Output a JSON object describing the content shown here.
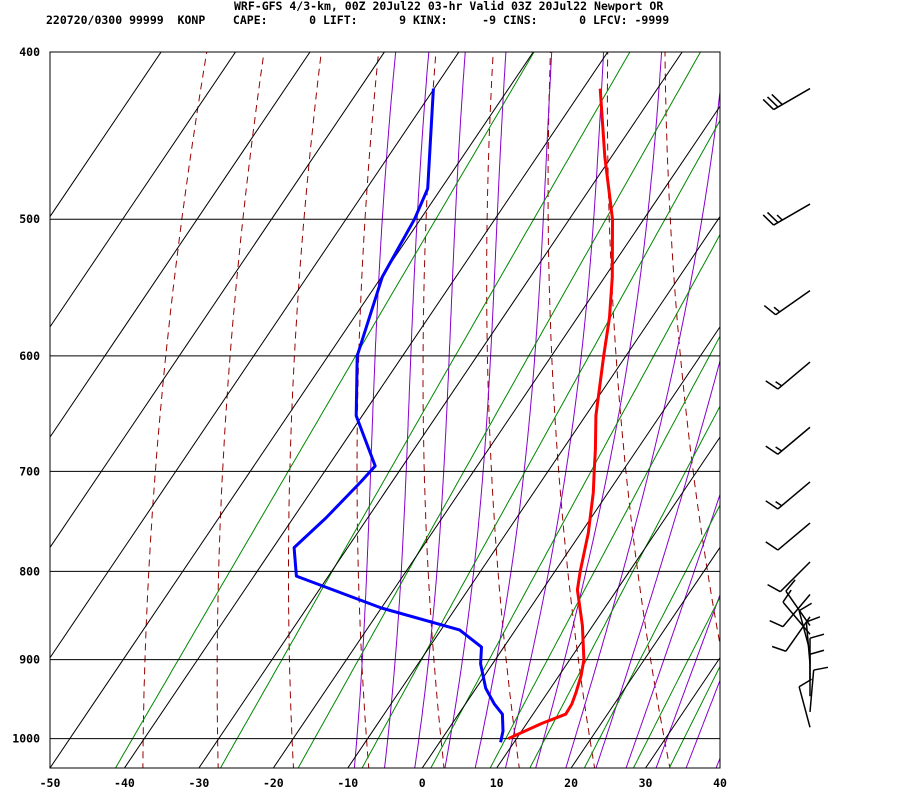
{
  "header": {
    "line1": "WRF-GFS 4/3-km, 00Z 20Jul22 03-hr Valid 03Z 20Jul22 Newport OR",
    "line2": "220720/0300 99999  KONP    CAPE:      0 LIFT:      9 KINX:     -9 CINS:      0 LFCV: -9999"
  },
  "colors": {
    "temperature": "#ff0000",
    "dewpoint": "#0000ff",
    "isotherm": "#000000",
    "isobar": "#000000",
    "dry_adiabat": "#990000",
    "moist_adiabat": "#8800cc",
    "mixing_ratio": "#008800",
    "wind_barb": "#000000"
  },
  "chart_data": {
    "type": "skew-t",
    "title": "WRF-GFS 4/3-km, 00Z 20Jul22 03-hr Valid 03Z 20Jul22 Newport OR",
    "xlabel": "",
    "ylabel": "",
    "x_range_bottom_degC": [
      -50,
      40
    ],
    "pressure_range_hPa": [
      1040,
      400
    ],
    "x_ticks": [
      "-50",
      "-40",
      "-30",
      "-20",
      "-10",
      "0",
      "10",
      "20",
      "30",
      "40"
    ],
    "x_tick_values": [
      -50,
      -40,
      -30,
      -20,
      -10,
      0,
      10,
      20,
      30,
      40
    ],
    "pressure_ticks": [
      "400",
      "500",
      "600",
      "700",
      "800",
      "900",
      "1000"
    ],
    "pressure_tick_values": [
      400,
      500,
      600,
      700,
      800,
      900,
      1000
    ],
    "grid": true,
    "series": [
      {
        "kind": "temperature",
        "pressure_hPa": [
          1000,
          980,
          968,
          955,
          940,
          920,
          900,
          860,
          820,
          800,
          760,
          720,
          700,
          680,
          650,
          600,
          570,
          540,
          500,
          460,
          420
        ],
        "values_degC": [
          8.9,
          12.0,
          14.4,
          14.3,
          13.8,
          13.0,
          11.9,
          8.6,
          4.7,
          3.4,
          1.0,
          -2.0,
          -3.8,
          -5.6,
          -8.6,
          -13.0,
          -15.7,
          -19.0,
          -24.2,
          -30.9,
          -37.7
        ]
      },
      {
        "kind": "dewpoint",
        "pressure_hPa": [
          1005,
          990,
          968,
          955,
          935,
          905,
          885,
          865,
          840,
          805,
          775,
          745,
          710,
          695,
          650,
          600,
          540,
          500,
          480,
          420
        ],
        "values_degC": [
          8.2,
          7.5,
          5.9,
          3.9,
          1.3,
          -1.6,
          -3.0,
          -7.5,
          -20.0,
          -34.3,
          -37.2,
          -35.6,
          -34.2,
          -33.7,
          -40.8,
          -46.1,
          -49.9,
          -50.8,
          -51.8,
          -60.1
        ]
      }
    ],
    "wind_barbs": [
      {
        "pressure_hPa": 420,
        "speed_kt": 30,
        "direction_deg": 240
      },
      {
        "pressure_hPa": 490,
        "speed_kt": 25,
        "direction_deg": 240
      },
      {
        "pressure_hPa": 550,
        "speed_kt": 15,
        "direction_deg": 235
      },
      {
        "pressure_hPa": 605,
        "speed_kt": 15,
        "direction_deg": 230
      },
      {
        "pressure_hPa": 660,
        "speed_kt": 15,
        "direction_deg": 230
      },
      {
        "pressure_hPa": 710,
        "speed_kt": 15,
        "direction_deg": 230
      },
      {
        "pressure_hPa": 750,
        "speed_kt": 10,
        "direction_deg": 230
      },
      {
        "pressure_hPa": 790,
        "speed_kt": 10,
        "direction_deg": 225
      },
      {
        "pressure_hPa": 825,
        "speed_kt": 10,
        "direction_deg": 220
      },
      {
        "pressure_hPa": 850,
        "speed_kt": 10,
        "direction_deg": 215
      },
      {
        "pressure_hPa": 860,
        "speed_kt": 10,
        "direction_deg": 325
      },
      {
        "pressure_hPa": 870,
        "speed_kt": 10,
        "direction_deg": 320
      },
      {
        "pressure_hPa": 890,
        "speed_kt": 10,
        "direction_deg": 345
      },
      {
        "pressure_hPa": 905,
        "speed_kt": 10,
        "direction_deg": 355
      },
      {
        "pressure_hPa": 925,
        "speed_kt": 10,
        "direction_deg": 0
      },
      {
        "pressure_hPa": 945,
        "speed_kt": 10,
        "direction_deg": 0
      },
      {
        "pressure_hPa": 965,
        "speed_kt": 10,
        "direction_deg": 5
      },
      {
        "pressure_hPa": 985,
        "speed_kt": 10,
        "direction_deg": 345
      }
    ]
  }
}
